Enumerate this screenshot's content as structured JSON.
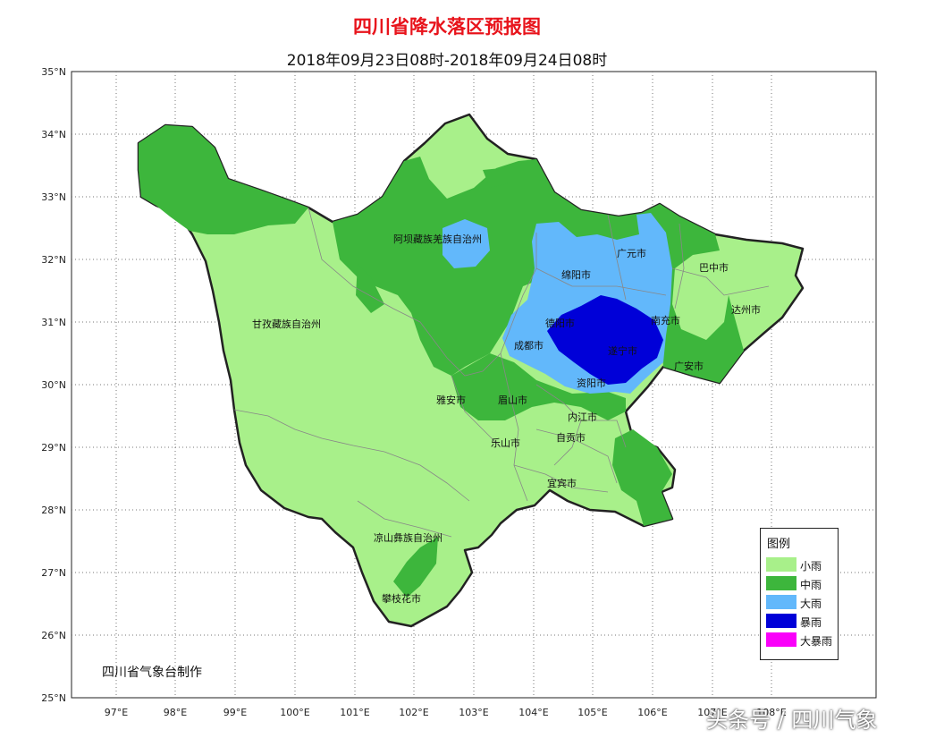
{
  "title": "四川省降水落区预报图",
  "subtitle": "2018年09月23日08时-2018年09月24日08时",
  "lat_labels": [
    "35°N",
    "34°N",
    "33°N",
    "32°N",
    "31°N",
    "30°N",
    "29°N",
    "28°N",
    "27°N",
    "26°N",
    "25°N"
  ],
  "lon_labels": [
    "97°E",
    "98°E",
    "99°E",
    "100°E",
    "101°E",
    "102°E",
    "103°E",
    "104°E",
    "105°E",
    "106°E",
    "107°E",
    "108°E"
  ],
  "regions": [
    "阿坝藏族羌族自治州",
    "甘孜藏族自治州",
    "凉山彝族自治州"
  ],
  "cities": [
    "广元市",
    "巴中市",
    "绵阳市",
    "达州市",
    "德阳市",
    "南充市",
    "成都市",
    "遂宁市",
    "广安市",
    "资阳市",
    "雅安市",
    "眉山市",
    "内江市",
    "自贡市",
    "乐山市",
    "宜宾市",
    "攀枝花市"
  ],
  "legend": {
    "title": "图例",
    "items": [
      {
        "label": "小雨",
        "color": "#a8f08a"
      },
      {
        "label": "中雨",
        "color": "#3db63c"
      },
      {
        "label": "大雨",
        "color": "#62b8fb"
      },
      {
        "label": "暴雨",
        "color": "#0000d8"
      },
      {
        "label": "大暴雨",
        "color": "#fa00fa"
      }
    ]
  },
  "credit": "四川省气象台制作",
  "watermark": "头条号 / 四川气象"
}
